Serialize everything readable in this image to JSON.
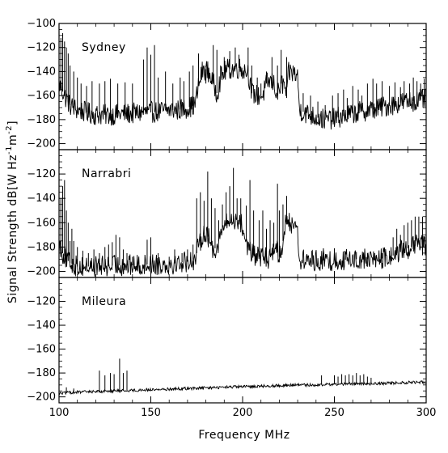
{
  "chart_data": {
    "type": "line",
    "xlabel": "Frequency  MHz",
    "ylabel": "Signal Strength dB[W Hz",
    "ylabel_sup1": "-1",
    "ylabel_mid": "m",
    "ylabel_sup2": "-2",
    "ylabel_end": "]",
    "xlim": [
      100,
      300
    ],
    "x_ticks": [
      100,
      150,
      200,
      250,
      300
    ],
    "panels": [
      {
        "name": "Sydney",
        "ylim": [
          -205,
          -100
        ],
        "y_ticks": [
          -100,
          -120,
          -140,
          -160,
          -180,
          -200
        ],
        "baseline": [
          [
            100,
            -150
          ],
          [
            103,
            -160
          ],
          [
            106,
            -168
          ],
          [
            110,
            -172
          ],
          [
            115,
            -174
          ],
          [
            120,
            -176
          ],
          [
            125,
            -176
          ],
          [
            130,
            -176
          ],
          [
            135,
            -175
          ],
          [
            140,
            -175
          ],
          [
            145,
            -174
          ],
          [
            150,
            -174
          ],
          [
            155,
            -173
          ],
          [
            160,
            -172
          ],
          [
            165,
            -172
          ],
          [
            170,
            -170
          ],
          [
            174,
            -168
          ],
          [
            176,
            -152
          ],
          [
            178,
            -140
          ],
          [
            180,
            -138
          ],
          [
            182,
            -142
          ],
          [
            184,
            -150
          ],
          [
            186,
            -158
          ],
          [
            188,
            -146
          ],
          [
            190,
            -140
          ],
          [
            192,
            -138
          ],
          [
            195,
            -138
          ],
          [
            198,
            -137
          ],
          [
            200,
            -138
          ],
          [
            203,
            -140
          ],
          [
            205,
            -158
          ],
          [
            208,
            -160
          ],
          [
            211,
            -160
          ],
          [
            213,
            -150
          ],
          [
            215,
            -148
          ],
          [
            217,
            -150
          ],
          [
            219,
            -160
          ],
          [
            221,
            -150
          ],
          [
            223,
            -152
          ],
          [
            224,
            -162
          ],
          [
            225,
            -141
          ],
          [
            228,
            -141
          ],
          [
            230,
            -145
          ],
          [
            231,
            -172
          ],
          [
            235,
            -175
          ],
          [
            240,
            -178
          ],
          [
            245,
            -180
          ],
          [
            250,
            -179
          ],
          [
            255,
            -177
          ],
          [
            260,
            -175
          ],
          [
            265,
            -173
          ],
          [
            270,
            -172
          ],
          [
            275,
            -170
          ],
          [
            280,
            -168
          ],
          [
            285,
            -166
          ],
          [
            290,
            -165
          ],
          [
            295,
            -164
          ],
          [
            300,
            -163
          ]
        ],
        "spikes": [
          [
            101,
            -112
          ],
          [
            102,
            -108
          ],
          [
            103,
            -115
          ],
          [
            104,
            -120
          ],
          [
            105,
            -125
          ],
          [
            106,
            -135
          ],
          [
            108,
            -140
          ],
          [
            110,
            -145
          ],
          [
            112,
            -150
          ],
          [
            115,
            -152
          ],
          [
            118,
            -148
          ],
          [
            122,
            -150
          ],
          [
            125,
            -148
          ],
          [
            128,
            -146
          ],
          [
            132,
            -150
          ],
          [
            136,
            -149
          ],
          [
            140,
            -150
          ],
          [
            146,
            -130
          ],
          [
            148,
            -120
          ],
          [
            150,
            -126
          ],
          [
            152,
            -118
          ],
          [
            154,
            -145
          ],
          [
            158,
            -140
          ],
          [
            162,
            -150
          ],
          [
            166,
            -145
          ],
          [
            168,
            -148
          ],
          [
            171,
            -140
          ],
          [
            173,
            -135
          ],
          [
            176,
            -125
          ],
          [
            180,
            -150
          ],
          [
            184,
            -118
          ],
          [
            186,
            -122
          ],
          [
            188,
            -135
          ],
          [
            190,
            -128
          ],
          [
            193,
            -123
          ],
          [
            196,
            -120
          ],
          [
            198,
            -126
          ],
          [
            201,
            -135
          ],
          [
            203,
            -120
          ],
          [
            205,
            -135
          ],
          [
            208,
            -145
          ],
          [
            210,
            -150
          ],
          [
            213,
            -140
          ],
          [
            216,
            -128
          ],
          [
            219,
            -135
          ],
          [
            221,
            -122
          ],
          [
            224,
            -128
          ],
          [
            233,
            -158
          ],
          [
            237,
            -160
          ],
          [
            241,
            -165
          ],
          [
            245,
            -168
          ],
          [
            249,
            -160
          ],
          [
            252,
            -158
          ],
          [
            255,
            -155
          ],
          [
            257,
            -162
          ],
          [
            260,
            -152
          ],
          [
            263,
            -155
          ],
          [
            265,
            -160
          ],
          [
            268,
            -150
          ],
          [
            271,
            -146
          ],
          [
            273,
            -150
          ],
          [
            276,
            -148
          ],
          [
            280,
            -152
          ],
          [
            283,
            -149
          ],
          [
            286,
            -153
          ],
          [
            288,
            -148
          ],
          [
            291,
            -150
          ],
          [
            293,
            -145
          ],
          [
            295,
            -148
          ],
          [
            297,
            -150
          ],
          [
            299,
            -146
          ]
        ]
      },
      {
        "name": "Narrabri",
        "ylim": [
          -205,
          -100
        ],
        "y_ticks": [
          -120,
          -140,
          -160,
          -180,
          -200
        ],
        "baseline": [
          [
            100,
            -178
          ],
          [
            102,
            -185
          ],
          [
            104,
            -190
          ],
          [
            106,
            -193
          ],
          [
            110,
            -196
          ],
          [
            115,
            -196
          ],
          [
            120,
            -196
          ],
          [
            125,
            -196
          ],
          [
            130,
            -195
          ],
          [
            135,
            -195
          ],
          [
            140,
            -195
          ],
          [
            145,
            -195
          ],
          [
            150,
            -194
          ],
          [
            155,
            -194
          ],
          [
            160,
            -194
          ],
          [
            165,
            -193
          ],
          [
            170,
            -192
          ],
          [
            174,
            -190
          ],
          [
            176,
            -180
          ],
          [
            178,
            -170
          ],
          [
            180,
            -168
          ],
          [
            182,
            -175
          ],
          [
            184,
            -182
          ],
          [
            186,
            -180
          ],
          [
            188,
            -170
          ],
          [
            190,
            -162
          ],
          [
            192,
            -160
          ],
          [
            195,
            -158
          ],
          [
            197,
            -157
          ],
          [
            199,
            -160
          ],
          [
            201,
            -170
          ],
          [
            203,
            -180
          ],
          [
            205,
            -186
          ],
          [
            208,
            -188
          ],
          [
            211,
            -188
          ],
          [
            214,
            -190
          ],
          [
            216,
            -184
          ],
          [
            218,
            -176
          ],
          [
            219,
            -184
          ],
          [
            220,
            -188
          ],
          [
            222,
            -175
          ],
          [
            223,
            -162
          ],
          [
            226,
            -160
          ],
          [
            229,
            -160
          ],
          [
            230,
            -170
          ],
          [
            231,
            -191
          ],
          [
            240,
            -191
          ],
          [
            250,
            -191
          ],
          [
            260,
            -190
          ],
          [
            270,
            -190
          ],
          [
            280,
            -189
          ],
          [
            284,
            -185
          ],
          [
            288,
            -182
          ],
          [
            292,
            -180
          ],
          [
            296,
            -178
          ],
          [
            300,
            -178
          ]
        ],
        "spikes": [
          [
            101,
            -140
          ],
          [
            102,
            -130
          ],
          [
            103,
            -125
          ],
          [
            104,
            -150
          ],
          [
            105,
            -160
          ],
          [
            106,
            -175
          ],
          [
            107,
            -165
          ],
          [
            108,
            -175
          ],
          [
            110,
            -180
          ],
          [
            113,
            -183
          ],
          [
            116,
            -185
          ],
          [
            119,
            -182
          ],
          [
            122,
            -185
          ],
          [
            125,
            -180
          ],
          [
            127,
            -178
          ],
          [
            129,
            -176
          ],
          [
            131,
            -170
          ],
          [
            133,
            -172
          ],
          [
            135,
            -182
          ],
          [
            137,
            -185
          ],
          [
            140,
            -188
          ],
          [
            148,
            -174
          ],
          [
            150,
            -172
          ],
          [
            154,
            -185
          ],
          [
            160,
            -188
          ],
          [
            163,
            -182
          ],
          [
            167,
            -185
          ],
          [
            170,
            -182
          ],
          [
            173,
            -178
          ],
          [
            175,
            -140
          ],
          [
            177,
            -135
          ],
          [
            179,
            -142
          ],
          [
            181,
            -118
          ],
          [
            183,
            -140
          ],
          [
            185,
            -148
          ],
          [
            187,
            -158
          ],
          [
            189,
            -145
          ],
          [
            191,
            -135
          ],
          [
            193,
            -130
          ],
          [
            195,
            -115
          ],
          [
            197,
            -140
          ],
          [
            199,
            -140
          ],
          [
            202,
            -146
          ],
          [
            204,
            -125
          ],
          [
            206,
            -150
          ],
          [
            209,
            -158
          ],
          [
            211,
            -150
          ],
          [
            213,
            -165
          ],
          [
            215,
            -158
          ],
          [
            217,
            -160
          ],
          [
            219,
            -128
          ],
          [
            220,
            -150
          ],
          [
            222,
            -145
          ],
          [
            224,
            -138
          ],
          [
            244,
            -181
          ],
          [
            250,
            -181
          ],
          [
            256,
            -184
          ],
          [
            262,
            -184
          ],
          [
            268,
            -185
          ],
          [
            272,
            -185
          ],
          [
            276,
            -185
          ],
          [
            280,
            -183
          ],
          [
            282,
            -172
          ],
          [
            284,
            -165
          ],
          [
            286,
            -170
          ],
          [
            288,
            -162
          ],
          [
            290,
            -160
          ],
          [
            292,
            -158
          ],
          [
            294,
            -155
          ],
          [
            296,
            -155
          ],
          [
            298,
            -155
          ]
        ]
      },
      {
        "name": "Mileura",
        "ylim": [
          -205,
          -100
        ],
        "y_ticks": [
          -120,
          -140,
          -160,
          -180,
          -200
        ],
        "baseline": [
          [
            100,
            -197
          ],
          [
            110,
            -196
          ],
          [
            120,
            -195.5
          ],
          [
            130,
            -195
          ],
          [
            140,
            -194.5
          ],
          [
            150,
            -194
          ],
          [
            160,
            -193.5
          ],
          [
            170,
            -193
          ],
          [
            180,
            -192.5
          ],
          [
            190,
            -192
          ],
          [
            200,
            -191.5
          ],
          [
            210,
            -191
          ],
          [
            220,
            -190.5
          ],
          [
            230,
            -190
          ],
          [
            240,
            -190
          ],
          [
            250,
            -189.5
          ],
          [
            260,
            -189
          ],
          [
            270,
            -189
          ],
          [
            280,
            -188.5
          ],
          [
            290,
            -188
          ],
          [
            300,
            -187.5
          ]
        ],
        "spikes": [
          [
            104,
            -192
          ],
          [
            108,
            -193
          ],
          [
            122,
            -178
          ],
          [
            125,
            -182
          ],
          [
            128,
            -180
          ],
          [
            130,
            -181
          ],
          [
            133,
            -168
          ],
          [
            135,
            -180
          ],
          [
            137,
            -178
          ],
          [
            243,
            -182
          ],
          [
            250,
            -182
          ],
          [
            252,
            -183
          ],
          [
            254,
            -181
          ],
          [
            256,
            -182
          ],
          [
            258,
            -181
          ],
          [
            260,
            -182
          ],
          [
            262,
            -180
          ],
          [
            264,
            -182
          ],
          [
            266,
            -181
          ],
          [
            268,
            -183
          ],
          [
            270,
            -184
          ]
        ]
      }
    ]
  }
}
